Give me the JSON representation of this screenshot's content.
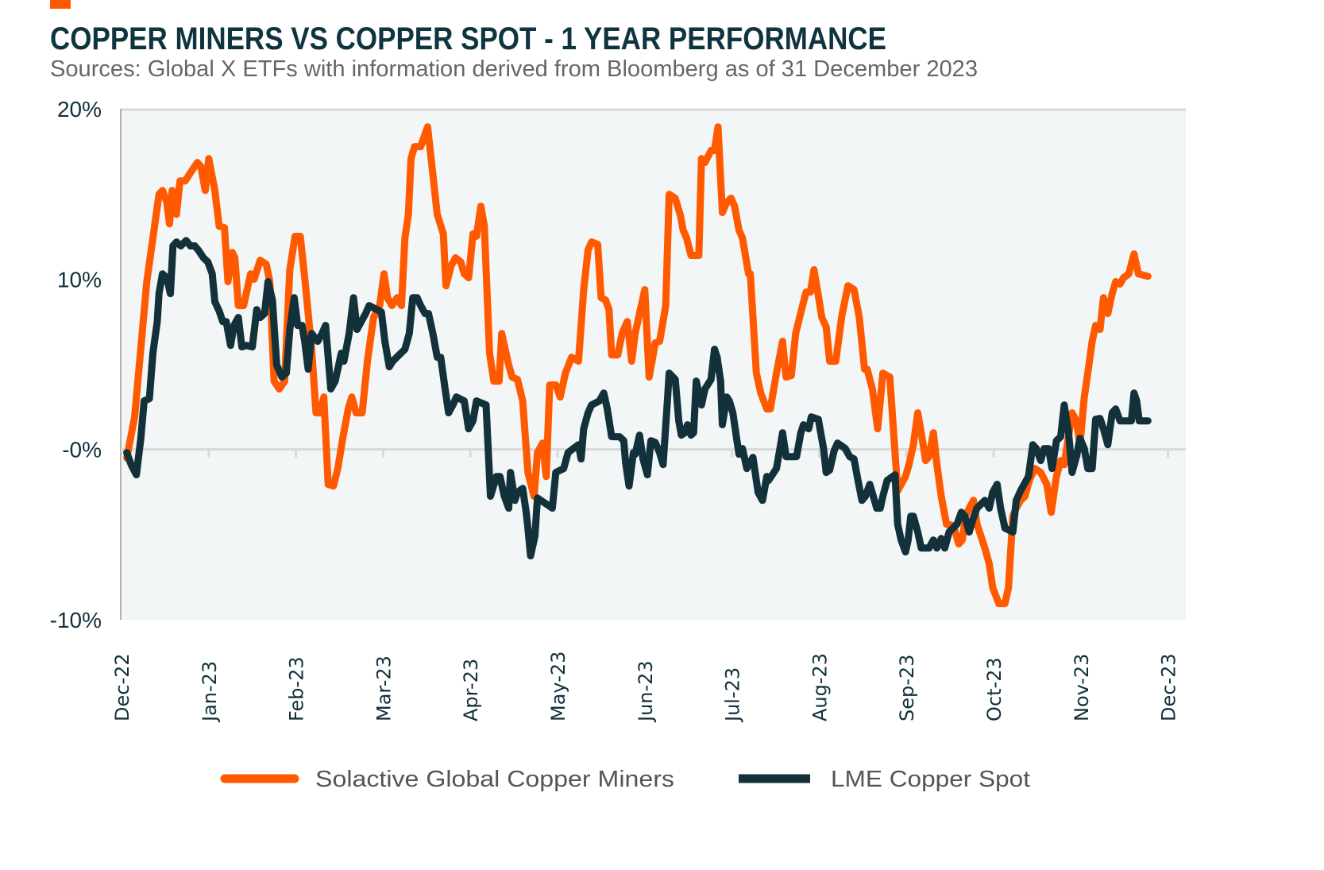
{
  "chart_data": {
    "type": "line",
    "title": "COPPER MINERS VS COPPER SPOT - 1 YEAR PERFORMANCE",
    "subtitle": "Sources: Global X ETFs with information derived from Bloomberg as of 31 December 2023",
    "xlabel": "",
    "ylabel": "",
    "x_unit": "months since Dec-22",
    "xlim": [
      0,
      12
    ],
    "ylim": [
      -10,
      20
    ],
    "x_ticks": [
      "Dec-22",
      "Jan-23",
      "Feb-23",
      "Mar-23",
      "Apr-23",
      "May-23",
      "Jun-23",
      "Jul-23",
      "Aug-23",
      "Sep-23",
      "Oct-23",
      "Nov-23",
      "Dec-23"
    ],
    "y_ticks": [
      {
        "value": 20,
        "label": "20%"
      },
      {
        "value": 10,
        "label": "10%"
      },
      {
        "value": 0,
        "label": "-0%"
      },
      {
        "value": -10,
        "label": "-10%"
      }
    ],
    "grid": false,
    "legend_position": "bottom",
    "series": [
      {
        "name": "Solactive Global Copper Miners",
        "color": "#ff5a00",
        "x": [
          0.06,
          0.15,
          0.22,
          0.29,
          0.36,
          0.43,
          0.47,
          0.52,
          0.55,
          0.58,
          0.63,
          0.67,
          0.73,
          0.79,
          0.87,
          0.91,
          0.96,
          1.0,
          1.07,
          1.12,
          1.18,
          1.22,
          1.27,
          1.3,
          1.34,
          1.4,
          1.48,
          1.52,
          1.59,
          1.66,
          1.7,
          1.75,
          1.81,
          1.87,
          1.93,
          1.99,
          2.05,
          2.11,
          2.18,
          2.23,
          2.28,
          2.32,
          2.37,
          2.43,
          2.48,
          2.54,
          2.6,
          2.64,
          2.69,
          2.76,
          2.82,
          2.89,
          2.96,
          3.01,
          3.05,
          3.1,
          3.16,
          3.21,
          3.25,
          3.29,
          3.32,
          3.36,
          3.43,
          3.51,
          3.57,
          3.62,
          3.69,
          3.72,
          3.78,
          3.83,
          3.89,
          3.93,
          3.98,
          4.03,
          4.07,
          4.12,
          4.16,
          4.22,
          4.27,
          4.33,
          4.36,
          4.44,
          4.48,
          4.54,
          4.6,
          4.66,
          4.73,
          4.77,
          4.83,
          4.87,
          4.91,
          4.98,
          5.03,
          5.09,
          5.16,
          5.24,
          5.3,
          5.35,
          5.39,
          5.46,
          5.5,
          5.55,
          5.59,
          5.62,
          5.69,
          5.74,
          5.8,
          5.85,
          5.89,
          5.97,
          6.0,
          6.05,
          6.12,
          6.17,
          6.24,
          6.28,
          6.35,
          6.41,
          6.44,
          6.48,
          6.53,
          6.62,
          6.65,
          6.69,
          6.76,
          6.8,
          6.84,
          6.89,
          6.94,
          6.99,
          7.03,
          7.08,
          7.12,
          7.19,
          7.21,
          7.28,
          7.33,
          7.4,
          7.44,
          7.51,
          7.58,
          7.62,
          7.68,
          7.73,
          7.81,
          7.85,
          7.9,
          7.94,
          7.99,
          8.03,
          8.08,
          8.12,
          8.19,
          8.26,
          8.33,
          8.4,
          8.46,
          8.52,
          8.55,
          8.61,
          8.67,
          8.73,
          8.81,
          8.9,
          8.99,
          9.03,
          9.08,
          9.13,
          9.17,
          9.22,
          9.26,
          9.31,
          9.35,
          9.4,
          9.46,
          9.54,
          9.6,
          9.64,
          9.68,
          9.72,
          9.77,
          9.81,
          9.9,
          9.95,
          9.99,
          10.06,
          10.13,
          10.17,
          10.22,
          10.26,
          10.31,
          10.36,
          10.41,
          10.47,
          10.54,
          10.61,
          10.66,
          10.72,
          10.77,
          10.81,
          10.9,
          10.95,
          10.99,
          11.04,
          11.08,
          11.13,
          11.17,
          11.22,
          11.26,
          11.31,
          11.36,
          11.4,
          11.45,
          11.49,
          11.55,
          11.61,
          11.66,
          11.77
        ],
        "values": [
          -0.51,
          1.91,
          5.88,
          9.85,
          12.41,
          14.98,
          15.21,
          14.51,
          13.25,
          15.21,
          13.81,
          15.77,
          15.77,
          16.24,
          16.85,
          16.61,
          15.21,
          17.08,
          15.21,
          13.11,
          13.02,
          9.85,
          11.57,
          11.25,
          8.45,
          8.45,
          10.31,
          9.99,
          11.11,
          10.87,
          9.85,
          4.01,
          3.55,
          4.01,
          10.55,
          12.51,
          12.51,
          9.61,
          5.88,
          2.15,
          2.15,
          3.08,
          -2.05,
          -2.15,
          -1.12,
          0.75,
          2.38,
          3.08,
          2.15,
          2.15,
          5.18,
          7.75,
          8.45,
          10.31,
          8.91,
          8.45,
          8.91,
          8.45,
          12.41,
          13.81,
          17.08,
          17.78,
          17.78,
          18.94,
          16.15,
          13.81,
          12.65,
          9.61,
          10.78,
          11.25,
          11.01,
          10.31,
          10.08,
          12.65,
          12.51,
          14.28,
          13.11,
          5.65,
          4.01,
          4.01,
          6.81,
          4.95,
          4.25,
          4.11,
          2.85,
          -1.35,
          -2.75,
          -0.19,
          0.37,
          -1.59,
          3.78,
          3.78,
          3.08,
          4.48,
          5.41,
          5.18,
          9.38,
          11.71,
          12.18,
          12.04,
          8.91,
          8.77,
          8.21,
          5.55,
          5.55,
          6.81,
          7.51,
          5.18,
          6.81,
          8.68,
          9.38,
          4.25,
          6.25,
          6.35,
          8.45,
          14.98,
          14.75,
          13.72,
          12.88,
          12.41,
          11.39,
          11.39,
          17.08,
          16.85,
          17.55,
          17.55,
          18.94,
          13.91,
          14.51,
          14.75,
          14.28,
          12.88,
          12.41,
          10.31,
          10.31,
          4.48,
          3.31,
          2.38,
          2.38,
          4.48,
          6.35,
          4.25,
          4.34,
          6.81,
          8.45,
          9.24,
          9.24,
          10.55,
          9.05,
          7.75,
          7.19,
          5.18,
          5.18,
          7.84,
          9.61,
          9.38,
          7.75,
          4.71,
          4.71,
          3.55,
          1.21,
          4.48,
          4.25,
          -2.43,
          -1.59,
          -0.89,
          0.28,
          2.15,
          0.98,
          -0.65,
          -0.42,
          0.98,
          -0.89,
          -2.75,
          -4.39,
          -4.48,
          -5.55,
          -5.32,
          -3.92,
          -3.45,
          -2.99,
          -4.39,
          -5.79,
          -6.72,
          -8.12,
          -9.05,
          -9.05,
          -8.12,
          -3.92,
          -3.45,
          -2.99,
          -2.75,
          -1.82,
          -1.12,
          -1.35,
          -2.05,
          -3.69,
          -1.59,
          -0.65,
          -0.89,
          2.15,
          1.68,
          0.28,
          3.08,
          4.48,
          6.35,
          7.28,
          7.05,
          8.91,
          7.98,
          9.15,
          9.85,
          9.71,
          10.08,
          10.31,
          11.48,
          10.31,
          10.17
        ]
      },
      {
        "name": "LME Copper Spot",
        "color": "#12313b",
        "x": [
          0.06,
          0.11,
          0.17,
          0.22,
          0.26,
          0.32,
          0.36,
          0.41,
          0.43,
          0.47,
          0.52,
          0.56,
          0.59,
          0.63,
          0.68,
          0.74,
          0.79,
          0.84,
          0.88,
          0.94,
          0.99,
          1.04,
          1.07,
          1.12,
          1.16,
          1.2,
          1.25,
          1.29,
          1.34,
          1.38,
          1.43,
          1.5,
          1.55,
          1.59,
          1.64,
          1.68,
          1.73,
          1.78,
          1.84,
          1.89,
          1.93,
          1.98,
          2.02,
          2.07,
          2.1,
          2.14,
          2.18,
          2.25,
          2.3,
          2.34,
          2.4,
          2.45,
          2.52,
          2.55,
          2.61,
          2.66,
          2.7,
          2.8,
          2.84,
          2.98,
          3.02,
          3.07,
          3.11,
          3.25,
          3.3,
          3.34,
          3.39,
          3.43,
          3.48,
          3.52,
          3.57,
          3.62,
          3.66,
          3.71,
          3.75,
          3.8,
          3.84,
          3.93,
          3.98,
          4.03,
          4.07,
          4.18,
          4.23,
          4.3,
          4.34,
          4.39,
          4.44,
          4.46,
          4.51,
          4.54,
          4.6,
          4.64,
          4.66,
          4.69,
          4.74,
          4.77,
          4.89,
          4.94,
          4.98,
          5.07,
          5.12,
          5.18,
          5.24,
          5.27,
          5.3,
          5.35,
          5.39,
          5.48,
          5.53,
          5.57,
          5.62,
          5.71,
          5.76,
          5.78,
          5.82,
          5.87,
          5.89,
          5.94,
          5.98,
          6.03,
          6.07,
          6.12,
          6.17,
          6.21,
          6.26,
          6.28,
          6.35,
          6.39,
          6.42,
          6.46,
          6.49,
          6.53,
          6.56,
          6.59,
          6.65,
          6.69,
          6.76,
          6.8,
          6.83,
          6.87,
          6.89,
          6.94,
          6.97,
          7.01,
          7.08,
          7.12,
          7.17,
          7.24,
          7.3,
          7.35,
          7.4,
          7.42,
          7.51,
          7.55,
          7.58,
          7.62,
          7.74,
          7.79,
          7.82,
          7.88,
          7.91,
          7.99,
          8.05,
          8.08,
          8.12,
          8.17,
          8.21,
          8.3,
          8.35,
          8.4,
          8.44,
          8.49,
          8.53,
          8.58,
          8.62,
          8.66,
          8.7,
          8.73,
          8.78,
          8.87,
          8.9,
          8.94,
          8.99,
          9.02,
          9.05,
          9.08,
          9.13,
          9.17,
          9.26,
          9.31,
          9.35,
          9.4,
          9.44,
          9.49,
          9.58,
          9.63,
          9.67,
          9.72,
          9.76,
          9.81,
          9.9,
          9.95,
          9.99,
          10.04,
          10.08,
          10.13,
          10.22,
          10.26,
          10.31,
          10.4,
          10.45,
          10.49,
          10.54,
          10.58,
          10.63,
          10.67,
          10.72,
          10.77,
          10.81,
          10.86,
          10.9,
          10.95,
          10.99,
          11.04,
          11.08,
          11.13,
          11.17,
          11.22,
          11.26,
          11.31,
          11.36,
          11.4,
          11.45,
          11.58,
          11.61,
          11.64,
          11.67,
          11.77
        ],
        "values": [
          -0.19,
          -0.89,
          -1.49,
          0.61,
          2.85,
          2.99,
          5.65,
          7.51,
          9.15,
          10.31,
          10.08,
          9.15,
          11.95,
          12.18,
          11.95,
          12.27,
          11.95,
          11.95,
          11.71,
          11.25,
          11.01,
          10.31,
          8.68,
          8.12,
          7.51,
          7.51,
          6.11,
          7.28,
          7.75,
          6.02,
          6.11,
          6.02,
          8.21,
          7.75,
          7.98,
          9.85,
          8.77,
          4.95,
          4.25,
          4.48,
          7.05,
          8.91,
          7.28,
          7.28,
          6.35,
          4.71,
          6.81,
          6.35,
          6.81,
          7.28,
          3.55,
          4.01,
          5.65,
          5.18,
          6.81,
          8.91,
          7.05,
          7.98,
          8.45,
          8.07,
          6.35,
          4.85,
          5.18,
          5.88,
          6.81,
          8.91,
          8.91,
          8.45,
          7.98,
          7.98,
          6.81,
          5.41,
          5.41,
          3.55,
          2.15,
          2.61,
          3.08,
          2.85,
          1.21,
          1.68,
          2.85,
          2.61,
          -2.75,
          -1.59,
          -1.59,
          -2.75,
          -3.45,
          -1.35,
          -2.99,
          -2.52,
          -2.29,
          -3.69,
          -4.62,
          -6.25,
          -5.09,
          -2.85,
          -3.27,
          -3.45,
          -1.35,
          -1.12,
          -0.19,
          0.05,
          0.28,
          -0.56,
          1.21,
          2.15,
          2.61,
          2.85,
          3.31,
          2.38,
          0.75,
          0.75,
          0.51,
          -0.75,
          -2.15,
          -0.19,
          -0.28,
          0.84,
          -0.56,
          -1.49,
          0.51,
          0.42,
          -0.19,
          -0.89,
          2.85,
          4.48,
          4.11,
          1.68,
          0.84,
          0.98,
          1.45,
          0.84,
          0.98,
          4.01,
          2.61,
          3.55,
          4.11,
          5.88,
          5.41,
          4.01,
          1.45,
          3.08,
          2.85,
          2.15,
          -0.28,
          0.05,
          -1.12,
          -0.47,
          -2.52,
          -2.99,
          -1.59,
          -1.82,
          -1.12,
          0.05,
          0.98,
          -0.42,
          -0.42,
          0.98,
          1.45,
          1.21,
          1.91,
          1.77,
          0.05,
          -1.35,
          -1.21,
          -0.09,
          0.37,
          0.05,
          -0.42,
          -0.56,
          -1.68,
          -2.99,
          -2.75,
          -2.05,
          -2.75,
          -3.45,
          -3.45,
          -2.75,
          -1.82,
          -1.49,
          -4.39,
          -5.32,
          -6.02,
          -5.32,
          -3.92,
          -3.92,
          -4.85,
          -5.79,
          -5.79,
          -5.32,
          -5.79,
          -5.23,
          -5.79,
          -4.85,
          -4.39,
          -3.69,
          -3.92,
          -4.85,
          -4.15,
          -3.45,
          -2.99,
          -3.45,
          -2.52,
          -2.05,
          -3.45,
          -4.62,
          -4.85,
          -2.99,
          -2.43,
          -1.59,
          0.28,
          0.05,
          -0.65,
          0.05,
          0.05,
          -1.12,
          0.51,
          0.75,
          2.61,
          0.98,
          -1.35,
          -0.42,
          0.65,
          0.05,
          -1.12,
          -1.12,
          1.77,
          1.82,
          1.21,
          0.28,
          2.15,
          2.38,
          1.68,
          1.68,
          3.31,
          2.85,
          1.68,
          1.68
        ]
      }
    ]
  },
  "colors": {
    "accent": "#ff5a00",
    "title": "#0f3440",
    "plot_bg": "#f2f6f7"
  }
}
